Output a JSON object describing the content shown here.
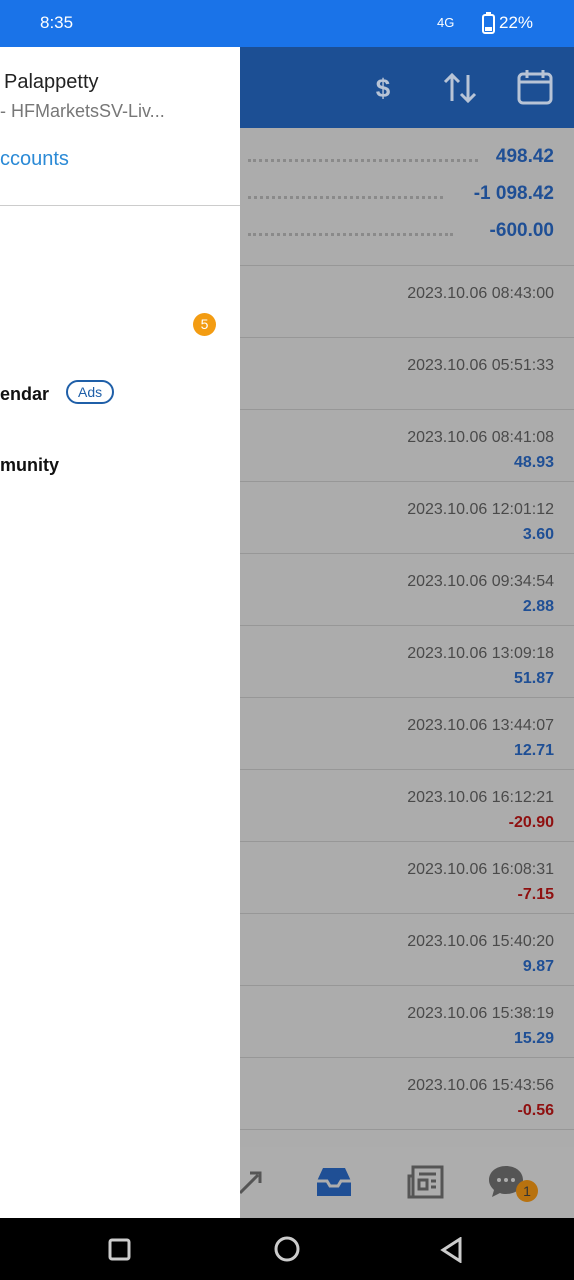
{
  "status_bar": {
    "time": "8:35",
    "network": "4G",
    "battery": "22%"
  },
  "drawer": {
    "name": "Palappetty",
    "server": "- HFMarketsSV-Liv...",
    "accounts_link": "ccounts",
    "items": [
      {
        "label": "",
        "badge": "5"
      },
      {
        "label": "endar",
        "badge": "Ads"
      },
      {
        "label": "munity",
        "badge": ""
      }
    ]
  },
  "summary": [
    "498.42",
    "-1 098.42",
    "-600.00"
  ],
  "rows": [
    {
      "time": "2023.10.06 08:43:00",
      "value": ""
    },
    {
      "time": "2023.10.06 05:51:33",
      "value": ""
    },
    {
      "time": "2023.10.06 08:41:08",
      "value": "48.93"
    },
    {
      "time": "2023.10.06 12:01:12",
      "value": "3.60"
    },
    {
      "time": "2023.10.06 09:34:54",
      "value": "2.88"
    },
    {
      "time": "2023.10.06 13:09:18",
      "value": "51.87"
    },
    {
      "time": "2023.10.06 13:44:07",
      "value": "12.71"
    },
    {
      "time": "2023.10.06 16:12:21",
      "value": "-20.90"
    },
    {
      "time": "2023.10.06 16:08:31",
      "value": "-7.15"
    },
    {
      "time": "2023.10.06 15:40:20",
      "value": "9.87"
    },
    {
      "time": "2023.10.06 15:38:19",
      "value": "15.29"
    },
    {
      "time": "2023.10.06 15:43:56",
      "value": "-0.56"
    }
  ],
  "bottom_nav": {
    "chat_badge": "1"
  }
}
